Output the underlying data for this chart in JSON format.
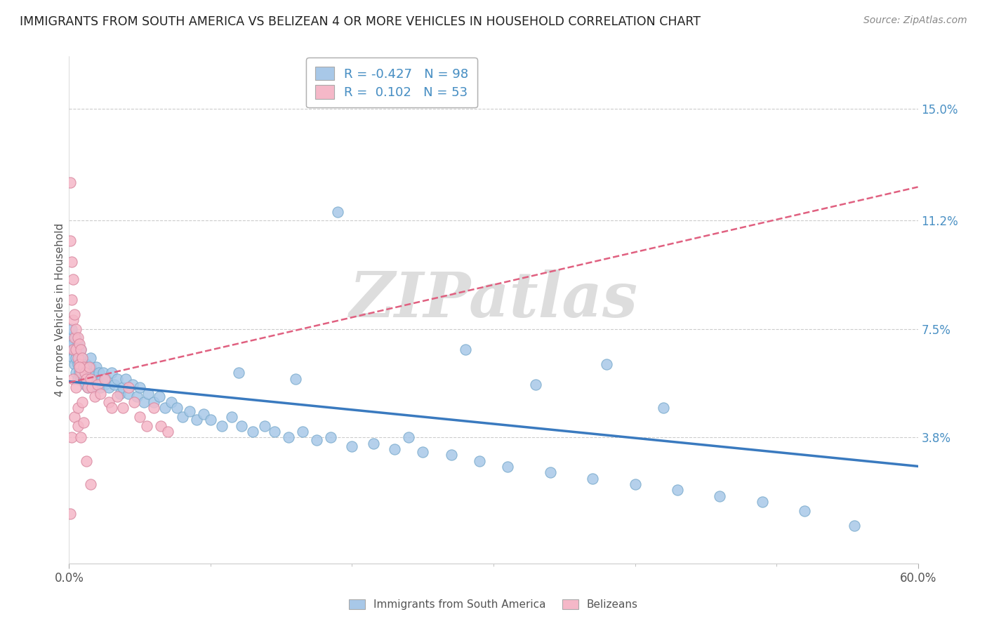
{
  "title": "IMMIGRANTS FROM SOUTH AMERICA VS BELIZEAN 4 OR MORE VEHICLES IN HOUSEHOLD CORRELATION CHART",
  "source": "Source: ZipAtlas.com",
  "ylabel": "4 or more Vehicles in Household",
  "xlim": [
    0.0,
    0.6
  ],
  "ylim": [
    -0.005,
    0.168
  ],
  "xtick_positions": [
    0.0,
    0.6
  ],
  "xticklabels": [
    "0.0%",
    "60.0%"
  ],
  "xtick_minor": [
    0.1,
    0.2,
    0.3,
    0.4,
    0.5
  ],
  "ytick_positions": [
    0.038,
    0.075,
    0.112,
    0.15
  ],
  "ytick_labels": [
    "3.8%",
    "7.5%",
    "11.2%",
    "15.0%"
  ],
  "blue_color": "#a8c8e8",
  "pink_color": "#f5b8c8",
  "blue_line_color": "#3a7abf",
  "pink_line_color": "#e06080",
  "legend_blue_label": "R = -0.427   N = 98",
  "legend_pink_label": "R =  0.102   N = 53",
  "watermark": "ZIPatlas",
  "legend_label_south": "Immigrants from South America",
  "legend_label_belize": "Belizeans",
  "blue_R": -0.427,
  "pink_R": 0.102,
  "blue_scatter_x": [
    0.001,
    0.002,
    0.002,
    0.003,
    0.003,
    0.004,
    0.004,
    0.005,
    0.005,
    0.005,
    0.006,
    0.006,
    0.006,
    0.007,
    0.007,
    0.008,
    0.008,
    0.008,
    0.009,
    0.009,
    0.01,
    0.01,
    0.011,
    0.011,
    0.012,
    0.012,
    0.013,
    0.013,
    0.014,
    0.015,
    0.015,
    0.016,
    0.017,
    0.018,
    0.019,
    0.02,
    0.021,
    0.022,
    0.023,
    0.024,
    0.025,
    0.026,
    0.028,
    0.03,
    0.032,
    0.034,
    0.036,
    0.038,
    0.04,
    0.042,
    0.045,
    0.048,
    0.05,
    0.053,
    0.056,
    0.06,
    0.064,
    0.068,
    0.072,
    0.076,
    0.08,
    0.085,
    0.09,
    0.095,
    0.1,
    0.108,
    0.115,
    0.122,
    0.13,
    0.138,
    0.145,
    0.155,
    0.165,
    0.175,
    0.185,
    0.2,
    0.215,
    0.23,
    0.25,
    0.27,
    0.29,
    0.31,
    0.34,
    0.37,
    0.4,
    0.43,
    0.46,
    0.49,
    0.52,
    0.555,
    0.28,
    0.19,
    0.16,
    0.33,
    0.38,
    0.24,
    0.42,
    0.12
  ],
  "blue_scatter_y": [
    0.072,
    0.068,
    0.075,
    0.065,
    0.07,
    0.063,
    0.068,
    0.06,
    0.065,
    0.072,
    0.058,
    0.063,
    0.07,
    0.06,
    0.065,
    0.058,
    0.062,
    0.068,
    0.06,
    0.065,
    0.058,
    0.062,
    0.056,
    0.06,
    0.058,
    0.063,
    0.055,
    0.06,
    0.058,
    0.062,
    0.065,
    0.058,
    0.06,
    0.055,
    0.062,
    0.058,
    0.06,
    0.055,
    0.058,
    0.06,
    0.056,
    0.058,
    0.055,
    0.06,
    0.056,
    0.058,
    0.053,
    0.055,
    0.058,
    0.053,
    0.056,
    0.052,
    0.055,
    0.05,
    0.053,
    0.05,
    0.052,
    0.048,
    0.05,
    0.048,
    0.045,
    0.047,
    0.044,
    0.046,
    0.044,
    0.042,
    0.045,
    0.042,
    0.04,
    0.042,
    0.04,
    0.038,
    0.04,
    0.037,
    0.038,
    0.035,
    0.036,
    0.034,
    0.033,
    0.032,
    0.03,
    0.028,
    0.026,
    0.024,
    0.022,
    0.02,
    0.018,
    0.016,
    0.013,
    0.008,
    0.068,
    0.115,
    0.058,
    0.056,
    0.063,
    0.038,
    0.048,
    0.06
  ],
  "pink_scatter_x": [
    0.001,
    0.001,
    0.002,
    0.002,
    0.003,
    0.003,
    0.003,
    0.004,
    0.004,
    0.005,
    0.005,
    0.006,
    0.006,
    0.007,
    0.007,
    0.008,
    0.008,
    0.009,
    0.01,
    0.011,
    0.012,
    0.013,
    0.014,
    0.015,
    0.016,
    0.018,
    0.02,
    0.022,
    0.025,
    0.028,
    0.03,
    0.034,
    0.038,
    0.042,
    0.046,
    0.05,
    0.055,
    0.06,
    0.065,
    0.07,
    0.002,
    0.003,
    0.004,
    0.005,
    0.006,
    0.006,
    0.007,
    0.008,
    0.009,
    0.01,
    0.012,
    0.015,
    0.001
  ],
  "pink_scatter_y": [
    0.125,
    0.105,
    0.098,
    0.085,
    0.092,
    0.078,
    0.068,
    0.08,
    0.072,
    0.075,
    0.068,
    0.072,
    0.065,
    0.07,
    0.063,
    0.068,
    0.06,
    0.065,
    0.062,
    0.06,
    0.058,
    0.055,
    0.062,
    0.058,
    0.055,
    0.052,
    0.056,
    0.053,
    0.058,
    0.05,
    0.048,
    0.052,
    0.048,
    0.055,
    0.05,
    0.045,
    0.042,
    0.048,
    0.042,
    0.04,
    0.038,
    0.058,
    0.045,
    0.055,
    0.048,
    0.042,
    0.062,
    0.038,
    0.05,
    0.043,
    0.03,
    0.022,
    0.012
  ]
}
